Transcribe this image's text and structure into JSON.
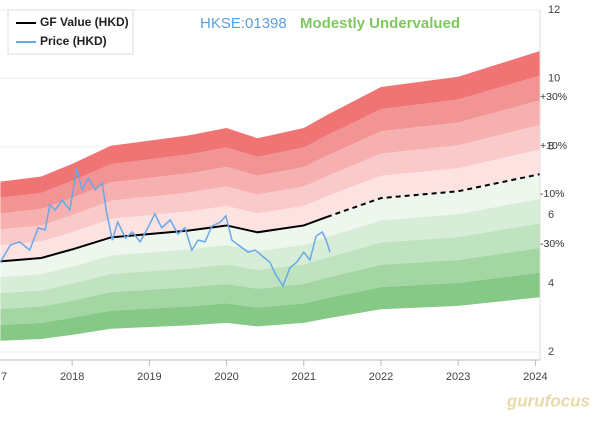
{
  "chart_data": {
    "type": "gf_value_bands",
    "ticker": "HKSE:01398",
    "valuation": "Modestly Undervalued",
    "watermark": "gurufocus",
    "band_labels": [
      "+30%",
      "+10%",
      "-10%",
      "-30%"
    ],
    "xlim": [
      2017.065,
      2024.06
    ],
    "ylim": [
      2,
      12
    ],
    "xticks": [
      {
        "value": 2017,
        "label": "7"
      },
      2018,
      2019,
      2020,
      2021,
      2022,
      2023,
      2024
    ],
    "yticks": [
      2,
      4,
      6,
      8,
      10,
      12
    ],
    "band_x": [
      2017.07,
      2017.6,
      2018,
      2018.5,
      2019.5,
      2020,
      2020.4,
      2021,
      2021.3,
      2022,
      2023,
      2024.06
    ],
    "estimate_start": 2021.3,
    "bands_upper": [
      {
        "color": "#f07474",
        "values": [
          6.98,
          7.13,
          7.5,
          8.03,
          8.33,
          8.55,
          8.25,
          8.55,
          8.93,
          9.75,
          10.05,
          10.8
        ]
      },
      {
        "color": "#f29494",
        "values": [
          6.51,
          6.65,
          7.0,
          7.49,
          7.77,
          7.98,
          7.7,
          7.98,
          8.33,
          9.1,
          9.38,
          10.08
        ]
      },
      {
        "color": "#f6b0b0",
        "values": [
          6.05,
          6.18,
          6.5,
          6.96,
          7.22,
          7.41,
          7.15,
          7.41,
          7.74,
          8.45,
          8.71,
          9.36
        ]
      },
      {
        "color": "#facaca",
        "values": [
          5.58,
          5.7,
          6.0,
          6.42,
          6.66,
          6.84,
          6.6,
          6.84,
          7.14,
          7.8,
          8.04,
          8.64
        ]
      },
      {
        "color": "#fde2e2",
        "values": [
          5.12,
          5.23,
          5.5,
          5.89,
          6.11,
          6.27,
          6.05,
          6.27,
          6.55,
          7.15,
          7.37,
          7.92
        ]
      }
    ],
    "bands_lower": [
      {
        "color": "#eef7ee",
        "values": [
          4.19,
          4.28,
          4.5,
          4.82,
          5.0,
          5.13,
          4.95,
          5.13,
          5.36,
          5.85,
          6.03,
          6.48
        ]
      },
      {
        "color": "#d7edd7",
        "values": [
          3.72,
          3.8,
          4.0,
          4.28,
          4.44,
          4.56,
          4.4,
          4.56,
          4.76,
          5.2,
          5.36,
          5.76
        ]
      },
      {
        "color": "#bfe2bf",
        "values": [
          3.26,
          3.33,
          3.5,
          3.75,
          3.89,
          3.99,
          3.85,
          3.99,
          4.17,
          4.55,
          4.69,
          5.04
        ]
      },
      {
        "color": "#a4d6a4",
        "values": [
          2.79,
          2.85,
          3.0,
          3.21,
          3.33,
          3.42,
          3.3,
          3.42,
          3.57,
          3.9,
          4.02,
          4.32
        ]
      },
      {
        "color": "#86c986",
        "values": [
          2.33,
          2.38,
          2.5,
          2.68,
          2.78,
          2.85,
          2.75,
          2.85,
          2.98,
          3.25,
          3.35,
          3.6
        ]
      }
    ],
    "series": [
      {
        "name": "GF Value (HKD)",
        "color": "#000000",
        "values": [
          4.65,
          4.75,
          5.0,
          5.35,
          5.55,
          5.7,
          5.5,
          5.7,
          5.95,
          6.5,
          6.7,
          7.2
        ]
      },
      {
        "name": "Price (HKD)",
        "color": "#6aa8e8",
        "x": [
          2017.07,
          2017.2,
          2017.32,
          2017.45,
          2017.56,
          2017.65,
          2017.71,
          2017.78,
          2017.87,
          2017.97,
          2018.06,
          2018.13,
          2018.21,
          2018.3,
          2018.39,
          2018.44,
          2018.52,
          2018.59,
          2018.69,
          2018.78,
          2018.88,
          2018.98,
          2019.07,
          2019.16,
          2019.27,
          2019.37,
          2019.46,
          2019.55,
          2019.63,
          2019.72,
          2019.81,
          2019.92,
          2019.99,
          2020.07,
          2020.17,
          2020.28,
          2020.37,
          2020.46,
          2020.56,
          2020.64,
          2020.73,
          2020.82,
          2020.91,
          2021.0,
          2021.08,
          2021.16,
          2021.24,
          2021.29,
          2021.34
        ],
        "values": [
          4.63,
          5.13,
          5.22,
          4.98,
          5.63,
          5.57,
          6.3,
          6.15,
          6.44,
          6.15,
          7.38,
          6.74,
          7.09,
          6.74,
          6.94,
          6.15,
          5.27,
          5.8,
          5.33,
          5.51,
          5.22,
          5.63,
          6.04,
          5.63,
          5.86,
          5.45,
          5.63,
          4.98,
          5.27,
          5.22,
          5.68,
          5.8,
          5.98,
          5.27,
          5.1,
          4.92,
          4.98,
          4.81,
          4.63,
          4.25,
          3.93,
          4.46,
          4.63,
          4.92,
          4.69,
          5.39,
          5.51,
          5.27,
          4.92
        ]
      }
    ]
  }
}
